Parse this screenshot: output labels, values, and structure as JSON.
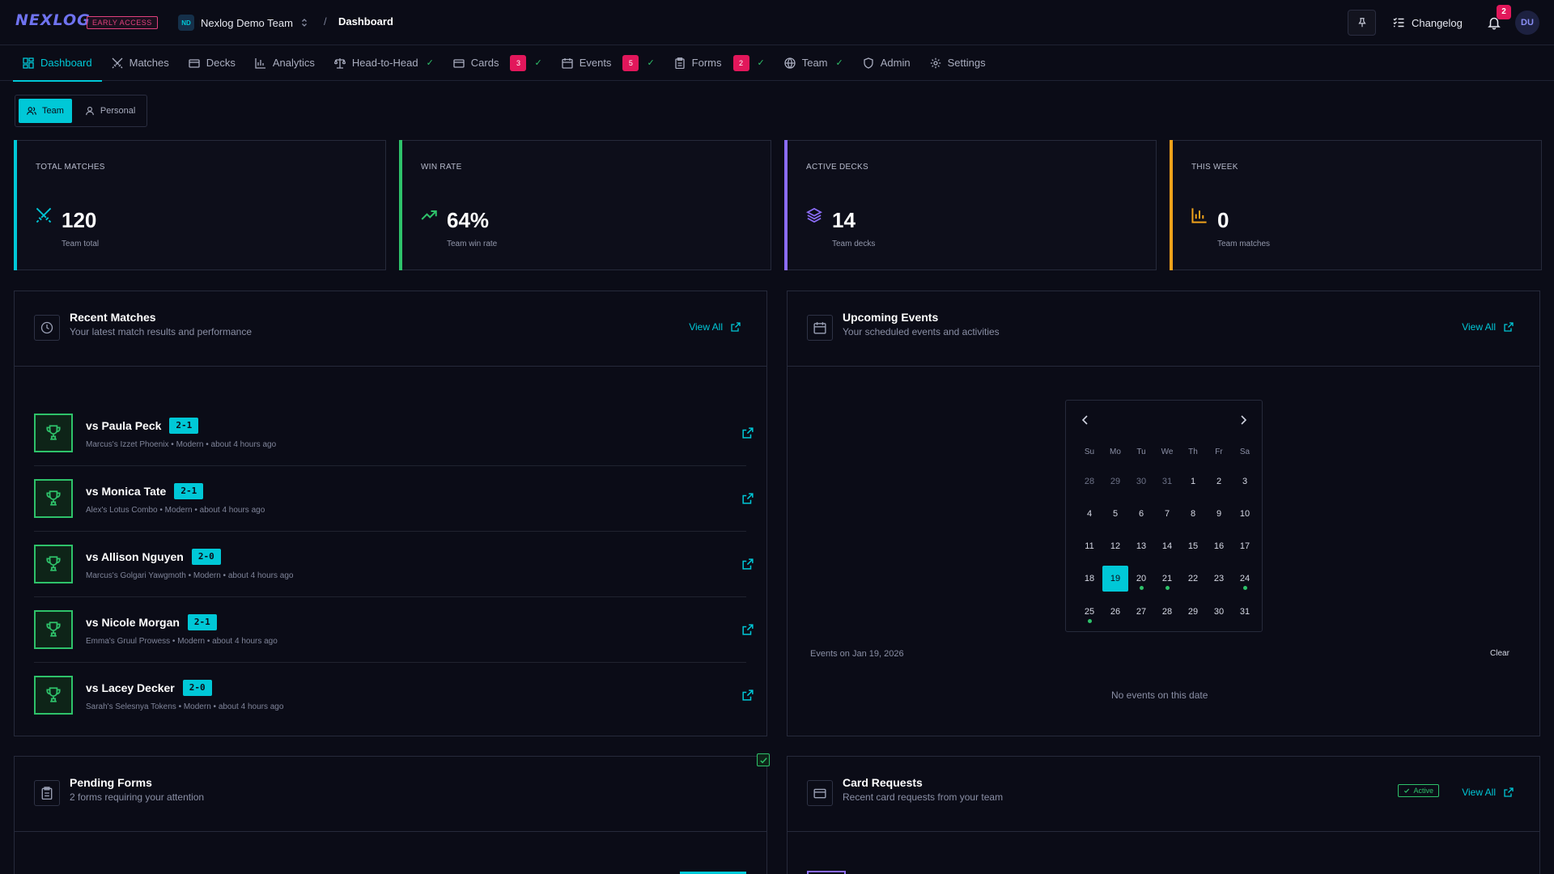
{
  "app": {
    "logo": "NEXLOG",
    "early_access": "EARLY ACCESS",
    "team_initials": "ND",
    "team_name": "Nexlog Demo Team",
    "breadcrumb_sep": "/",
    "breadcrumb_current": "Dashboard",
    "changelog": "Changelog",
    "notifications": "2",
    "user_initials": "DU"
  },
  "nav": {
    "tabs": [
      {
        "label": "Dashboard"
      },
      {
        "label": "Matches"
      },
      {
        "label": "Decks"
      },
      {
        "label": "Analytics"
      },
      {
        "label": "Head-to-Head"
      },
      {
        "label": "Cards",
        "badge": "3"
      },
      {
        "label": "Events",
        "badge": "5"
      },
      {
        "label": "Forms",
        "badge": "2"
      },
      {
        "label": "Team"
      },
      {
        "label": "Admin"
      },
      {
        "label": "Settings"
      }
    ]
  },
  "toggle": {
    "team": "Team",
    "personal": "Personal"
  },
  "stats": [
    {
      "label": "TOTAL MATCHES",
      "value": "120",
      "sub": "Team total",
      "color": "#00c8d7"
    },
    {
      "label": "WIN RATE",
      "value": "64%",
      "sub": "Team win rate",
      "color": "#2ec26a"
    },
    {
      "label": "ACTIVE DECKS",
      "value": "14",
      "sub": "Team decks",
      "color": "#8b6cf5"
    },
    {
      "label": "THIS WEEK",
      "value": "0",
      "sub": "Team matches",
      "color": "#f0a21b"
    }
  ],
  "recent_matches": {
    "title": "Recent Matches",
    "subtitle": "Your latest match results and performance",
    "view_all": "View All",
    "items": [
      {
        "opponent": "vs Paula Peck",
        "score": "2-1",
        "meta": "Marcus's Izzet Phoenix • Modern • about 4 hours ago"
      },
      {
        "opponent": "vs Monica Tate",
        "score": "2-1",
        "meta": "Alex's Lotus Combo • Modern • about 4 hours ago"
      },
      {
        "opponent": "vs Allison Nguyen",
        "score": "2-0",
        "meta": "Marcus's Golgari Yawgmoth • Modern • about 4 hours ago"
      },
      {
        "opponent": "vs Nicole Morgan",
        "score": "2-1",
        "meta": "Emma's Gruul Prowess • Modern • about 4 hours ago"
      },
      {
        "opponent": "vs Lacey Decker",
        "score": "2-0",
        "meta": "Sarah's Selesnya Tokens • Modern • about 4 hours ago"
      }
    ]
  },
  "upcoming_events": {
    "title": "Upcoming Events",
    "subtitle": "Your scheduled events and activities",
    "view_all": "View All",
    "calendar": {
      "dows": [
        "Su",
        "Mo",
        "Tu",
        "We",
        "Th",
        "Fr",
        "Sa"
      ],
      "weeks": [
        [
          "28",
          "29",
          "30",
          "31",
          "1",
          "2",
          "3"
        ],
        [
          "4",
          "5",
          "6",
          "7",
          "8",
          "9",
          "10"
        ],
        [
          "11",
          "12",
          "13",
          "14",
          "15",
          "16",
          "17"
        ],
        [
          "18",
          "19",
          "20",
          "21",
          "22",
          "23",
          "24"
        ],
        [
          "25",
          "26",
          "27",
          "28",
          "29",
          "30",
          "31"
        ]
      ],
      "selected": "19",
      "event_days": [
        "20",
        "21",
        "24",
        "25"
      ]
    },
    "events_on": "Events on Jan 19, 2026",
    "clear": "Clear",
    "no_events": "No events on this date"
  },
  "pending_forms": {
    "title": "Pending Forms",
    "subtitle": "2 forms requiring your attention"
  },
  "card_requests": {
    "title": "Card Requests",
    "subtitle": "Recent card requests from your team",
    "active": "Active",
    "view_all": "View All"
  }
}
